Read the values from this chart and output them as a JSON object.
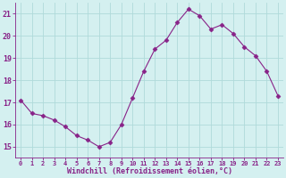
{
  "x": [
    0,
    1,
    2,
    3,
    4,
    5,
    6,
    7,
    8,
    9,
    10,
    11,
    12,
    13,
    14,
    15,
    16,
    17,
    18,
    19,
    20,
    21,
    22,
    23
  ],
  "y": [
    17.1,
    16.5,
    16.4,
    16.2,
    15.9,
    15.5,
    15.3,
    15.0,
    15.2,
    16.0,
    17.2,
    18.4,
    19.4,
    19.8,
    20.6,
    21.2,
    20.9,
    20.3,
    20.5,
    20.1,
    19.5,
    19.1,
    18.4,
    17.3
  ],
  "line_color": "#882288",
  "marker": "D",
  "marker_size": 2.5,
  "bg_color": "#d4f0f0",
  "grid_color": "#b0dada",
  "xlabel": "Windchill (Refroidissement éolien,°C)",
  "xlabel_color": "#882288",
  "tick_color": "#882288",
  "label_color": "#882288",
  "ylim": [
    14.5,
    21.5
  ],
  "xlim": [
    -0.5,
    23.5
  ],
  "yticks": [
    15,
    16,
    17,
    18,
    19,
    20,
    21
  ],
  "xtick_fontsize": 5.0,
  "ytick_fontsize": 6.0,
  "xlabel_fontsize": 6.0
}
